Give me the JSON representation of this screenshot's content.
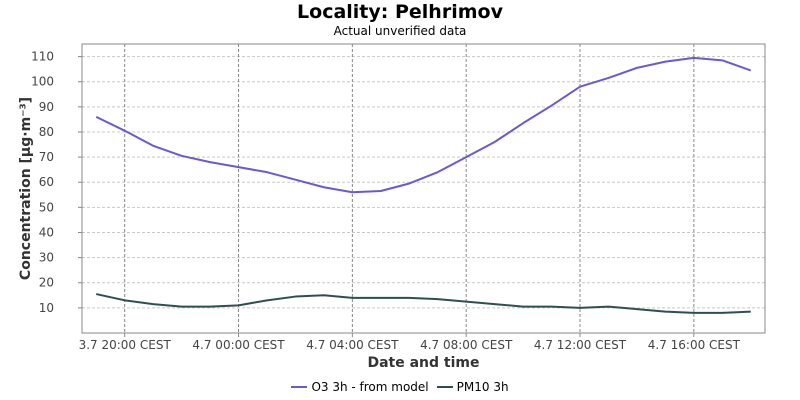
{
  "chart_data": {
    "type": "line",
    "title": "Locality: Pelhrimov",
    "subtitle": "Actual unverified data",
    "xlabel": "Date and time",
    "ylabel": "Concentration [µg·m⁻³]",
    "ylim": [
      0,
      115
    ],
    "y_ticks": [
      10,
      20,
      30,
      40,
      50,
      60,
      70,
      80,
      90,
      100,
      110
    ],
    "x_ticks": [
      "3.7 20:00 CEST",
      "4.7 00:00 CEST",
      "4.7 04:00 CEST",
      "4.7 08:00 CEST",
      "4.7 12:00 CEST",
      "4.7 16:00 CEST"
    ],
    "x_tick_hours": [
      1,
      5,
      9,
      13,
      17,
      21
    ],
    "grid": true,
    "legend_position": "bottom-center",
    "x_hours": [
      0,
      1,
      2,
      3,
      4,
      5,
      6,
      7,
      8,
      9,
      10,
      11,
      12,
      13,
      14,
      15,
      16,
      17,
      18,
      19,
      20,
      21,
      22,
      23
    ],
    "series": [
      {
        "name": "O3 3h - from model",
        "color": "#6a5acd",
        "values": [
          86,
          80.5,
          74.5,
          70.5,
          68,
          66,
          64,
          61,
          58,
          56,
          56.5,
          59.5,
          64,
          70,
          76,
          83.5,
          90.5,
          98,
          101.5,
          105.5,
          108,
          109.5,
          108.5,
          104.5
        ]
      },
      {
        "name": "PM10 3h",
        "color": "#2f4f4f",
        "values": [
          15.5,
          13,
          11.5,
          10.5,
          10.5,
          11,
          13,
          14.5,
          15,
          14,
          14,
          14,
          13.5,
          12.5,
          11.5,
          10.5,
          10.5,
          10,
          10.5,
          9.5,
          8.5,
          8,
          8,
          8.5
        ]
      }
    ]
  }
}
